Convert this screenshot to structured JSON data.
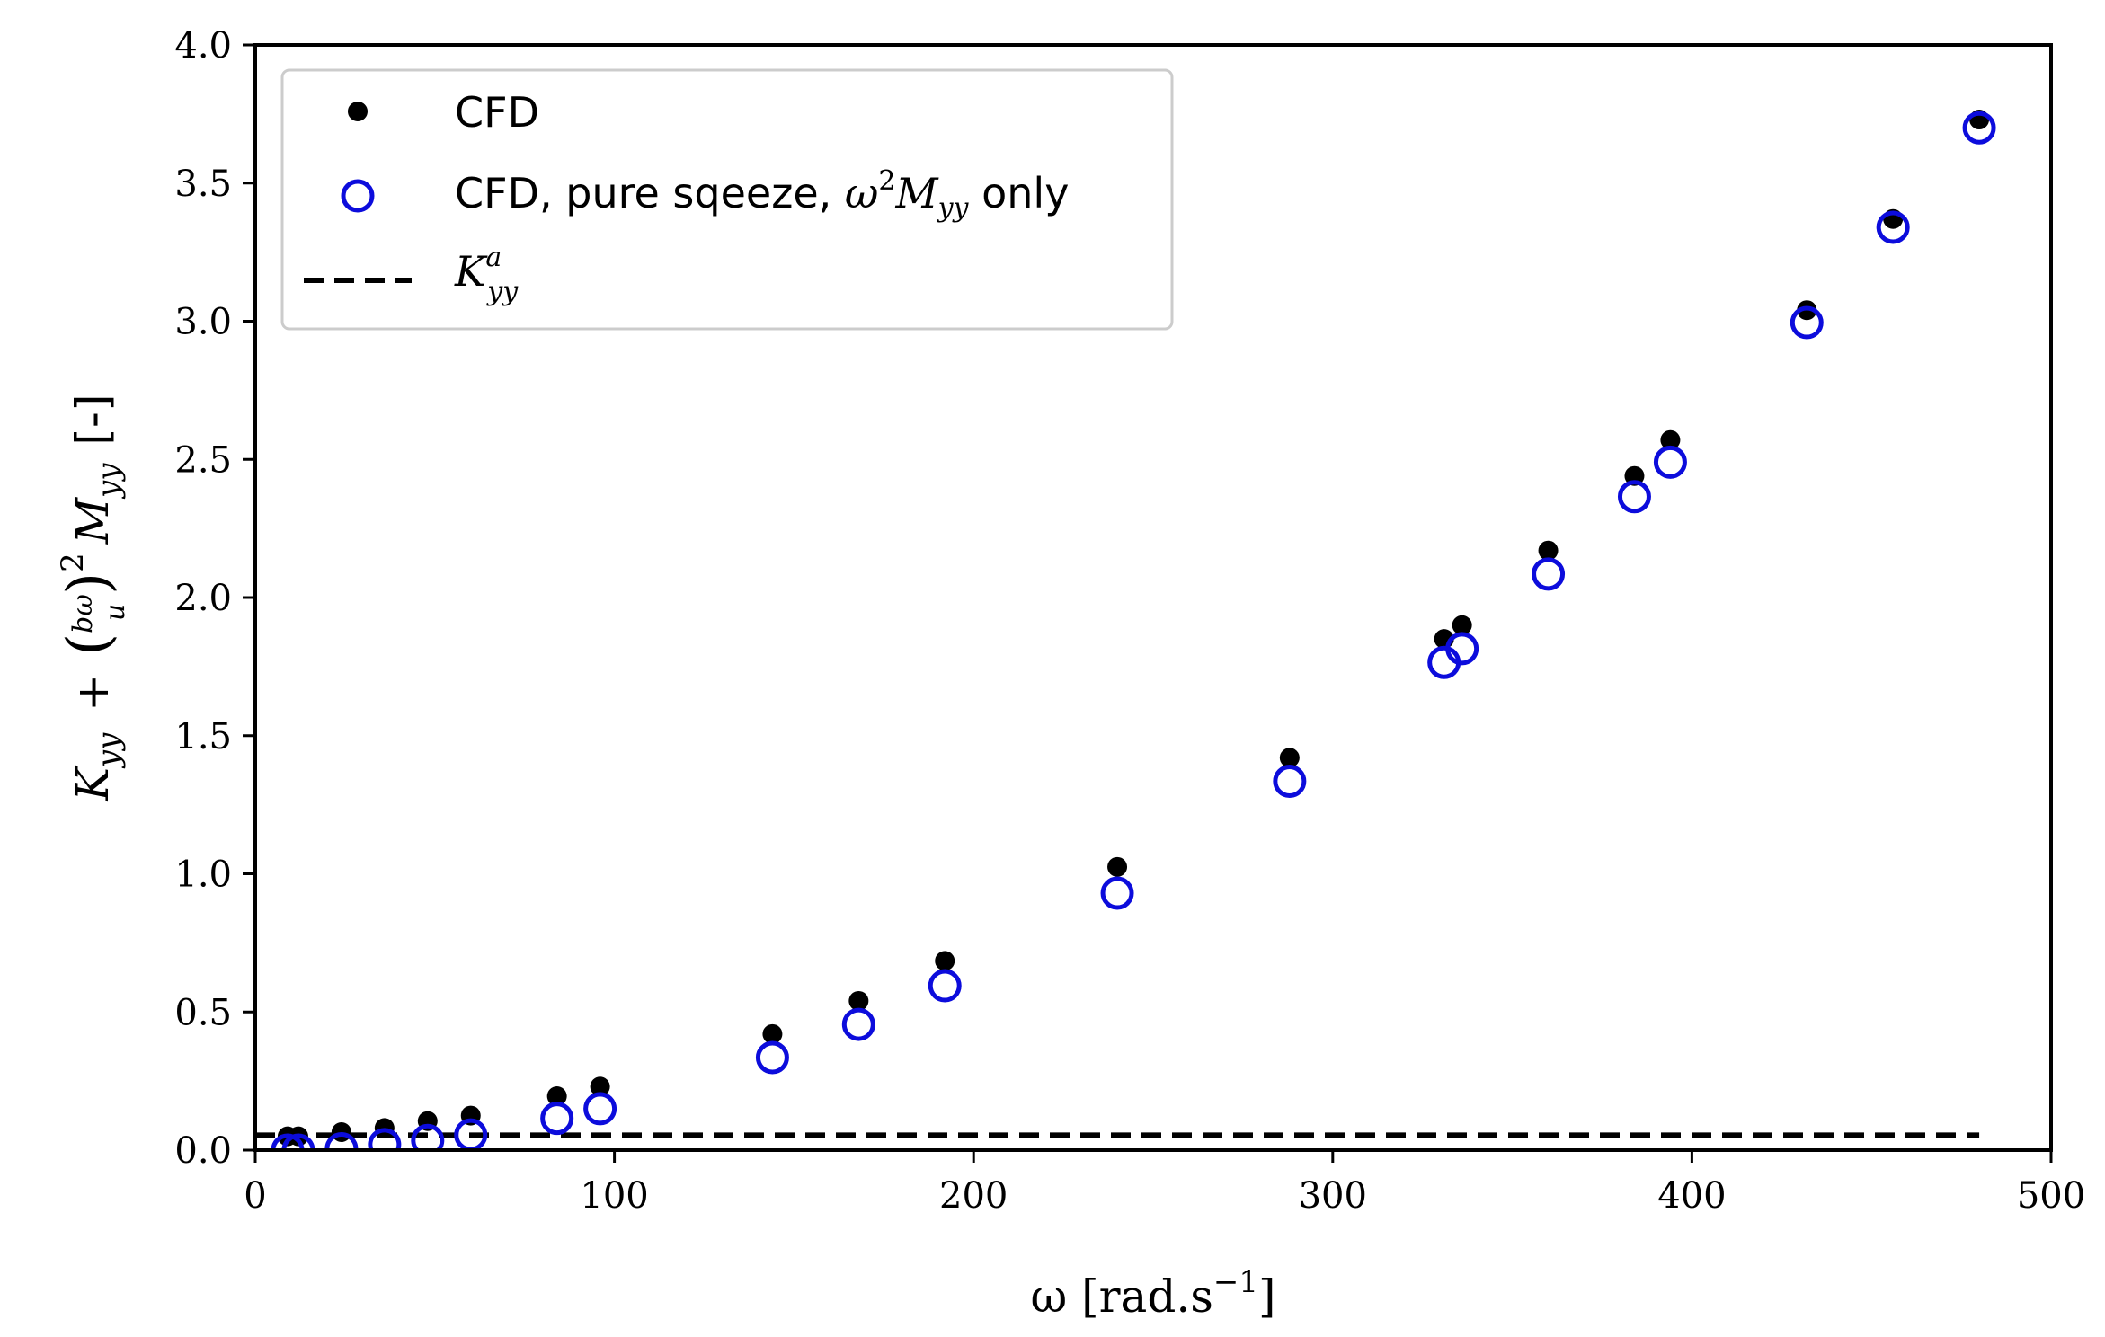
{
  "chart_data": {
    "type": "scatter",
    "title": "",
    "xlabel": {
      "prefix": "ω [rad.s",
      "exponent": "−1",
      "suffix": "]"
    },
    "ylabel": {
      "k": "K",
      "k_sub": "yy",
      "plus": "+",
      "frac_num": "bω",
      "frac_den": "u",
      "power": "2",
      "m": "M",
      "m_sub": "yy",
      "unit": "[-]"
    },
    "xlim": [
      0,
      500
    ],
    "ylim": [
      0,
      4.0
    ],
    "xticks": [
      0,
      100,
      200,
      300,
      400,
      500
    ],
    "xtick_labels": [
      "0",
      "100",
      "200",
      "300",
      "400",
      "500"
    ],
    "yticks": [
      0,
      0.5,
      1.0,
      1.5,
      2.0,
      2.5,
      3.0,
      3.5,
      4.0
    ],
    "ytick_labels": [
      "0.0",
      "0.5",
      "1.0",
      "1.5",
      "2.0",
      "2.5",
      "3.0",
      "3.5",
      "4.0"
    ],
    "grid": false,
    "legend_position": "top-left",
    "series": [
      {
        "name": "CFD",
        "marker": "filled-circle",
        "color": "#000000",
        "x": [
          9,
          12,
          24,
          36,
          48,
          60,
          84,
          96,
          144,
          168,
          192,
          240,
          288,
          331,
          336,
          360,
          384,
          394,
          432,
          456,
          480
        ],
        "y": [
          0.05,
          0.05,
          0.065,
          0.08,
          0.105,
          0.125,
          0.195,
          0.23,
          0.42,
          0.54,
          0.685,
          1.025,
          1.42,
          1.85,
          1.9,
          2.17,
          2.44,
          2.57,
          3.04,
          3.37,
          3.73
        ]
      },
      {
        "name": "CFD, pure sqeeze, ω²M_yy only",
        "legend_prefix": "CFD, pure sqeeze, ",
        "legend_math": "ω",
        "legend_math_sup": "2",
        "legend_math_m": "M",
        "legend_math_sub": "yy",
        "legend_suffix": " only",
        "marker": "open-circle",
        "color": "#0c0cdc",
        "x": [
          9,
          12,
          24,
          36,
          48,
          60,
          84,
          96,
          144,
          168,
          192,
          240,
          288,
          331,
          336,
          360,
          384,
          394,
          432,
          456,
          480
        ],
        "y": [
          0.0,
          0.0,
          0.005,
          0.02,
          0.035,
          0.055,
          0.115,
          0.15,
          0.335,
          0.455,
          0.595,
          0.93,
          1.335,
          1.765,
          1.815,
          2.085,
          2.365,
          2.49,
          2.995,
          3.34,
          3.7
        ]
      },
      {
        "name": "K^a_yy",
        "legend_k": "K",
        "legend_sup": "a",
        "legend_sub": "yy",
        "marker": "dashed-line",
        "color": "#000000",
        "x": [
          0,
          480
        ],
        "y": [
          0.054,
          0.054
        ]
      }
    ]
  }
}
